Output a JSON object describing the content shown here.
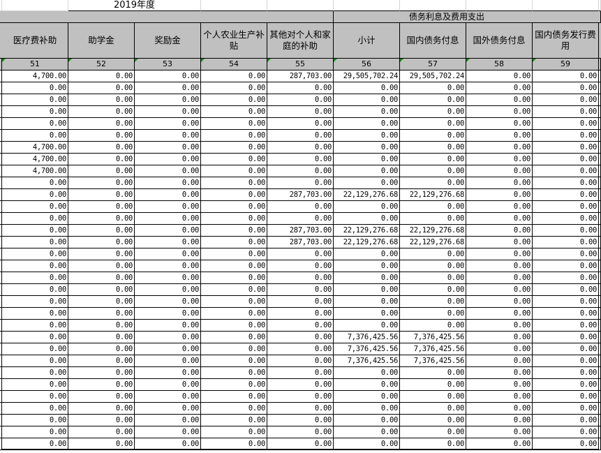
{
  "sheet": {
    "year_title": "2019年度",
    "group_header": "债务利息及费用支出",
    "columns": [
      {
        "label": "医疗费补助",
        "number": "51"
      },
      {
        "label": "助学金",
        "number": "52"
      },
      {
        "label": "奖励金",
        "number": "53"
      },
      {
        "label": "个人农业生产补贴",
        "number": "54"
      },
      {
        "label": "其他对个人和家庭的补助",
        "number": "55"
      },
      {
        "label": "小计",
        "number": "56"
      },
      {
        "label": "国内债务付息",
        "number": "57"
      },
      {
        "label": "国外债务付息",
        "number": "58"
      },
      {
        "label": "国内债务发行费用",
        "number": "59"
      }
    ],
    "rows": [
      [
        "4,700.00",
        "0.00",
        "0.00",
        "0.00",
        "287,703.00",
        "29,505,702.24",
        "29,505,702.24",
        "0.00",
        "0.00"
      ],
      [
        "0.00",
        "0.00",
        "0.00",
        "0.00",
        "0.00",
        "0.00",
        "0.00",
        "0.00",
        "0.00"
      ],
      [
        "0.00",
        "0.00",
        "0.00",
        "0.00",
        "0.00",
        "0.00",
        "0.00",
        "0.00",
        "0.00"
      ],
      [
        "0.00",
        "0.00",
        "0.00",
        "0.00",
        "0.00",
        "0.00",
        "0.00",
        "0.00",
        "0.00"
      ],
      [
        "0.00",
        "0.00",
        "0.00",
        "0.00",
        "0.00",
        "0.00",
        "0.00",
        "0.00",
        "0.00"
      ],
      [
        "0.00",
        "0.00",
        "0.00",
        "0.00",
        "0.00",
        "0.00",
        "0.00",
        "0.00",
        "0.00"
      ],
      [
        "4,700.00",
        "0.00",
        "0.00",
        "0.00",
        "0.00",
        "0.00",
        "0.00",
        "0.00",
        "0.00"
      ],
      [
        "4,700.00",
        "0.00",
        "0.00",
        "0.00",
        "0.00",
        "0.00",
        "0.00",
        "0.00",
        "0.00"
      ],
      [
        "4,700.00",
        "0.00",
        "0.00",
        "0.00",
        "0.00",
        "0.00",
        "0.00",
        "0.00",
        "0.00"
      ],
      [
        "0.00",
        "0.00",
        "0.00",
        "0.00",
        "0.00",
        "0.00",
        "0.00",
        "0.00",
        "0.00"
      ],
      [
        "0.00",
        "0.00",
        "0.00",
        "0.00",
        "287,703.00",
        "22,129,276.68",
        "22,129,276.68",
        "0.00",
        "0.00"
      ],
      [
        "0.00",
        "0.00",
        "0.00",
        "0.00",
        "0.00",
        "0.00",
        "0.00",
        "0.00",
        "0.00"
      ],
      [
        "0.00",
        "0.00",
        "0.00",
        "0.00",
        "0.00",
        "0.00",
        "0.00",
        "0.00",
        "0.00"
      ],
      [
        "0.00",
        "0.00",
        "0.00",
        "0.00",
        "287,703.00",
        "22,129,276.68",
        "22,129,276.68",
        "0.00",
        "0.00"
      ],
      [
        "0.00",
        "0.00",
        "0.00",
        "0.00",
        "287,703.00",
        "22,129,276.68",
        "22,129,276.68",
        "0.00",
        "0.00"
      ],
      [
        "0.00",
        "0.00",
        "0.00",
        "0.00",
        "0.00",
        "0.00",
        "0.00",
        "0.00",
        "0.00"
      ],
      [
        "0.00",
        "0.00",
        "0.00",
        "0.00",
        "0.00",
        "0.00",
        "0.00",
        "0.00",
        "0.00"
      ],
      [
        "0.00",
        "0.00",
        "0.00",
        "0.00",
        "0.00",
        "0.00",
        "0.00",
        "0.00",
        "0.00"
      ],
      [
        "0.00",
        "0.00",
        "0.00",
        "0.00",
        "0.00",
        "0.00",
        "0.00",
        "0.00",
        "0.00"
      ],
      [
        "0.00",
        "0.00",
        "0.00",
        "0.00",
        "0.00",
        "0.00",
        "0.00",
        "0.00",
        "0.00"
      ],
      [
        "0.00",
        "0.00",
        "0.00",
        "0.00",
        "0.00",
        "0.00",
        "0.00",
        "0.00",
        "0.00"
      ],
      [
        "0.00",
        "0.00",
        "0.00",
        "0.00",
        "0.00",
        "0.00",
        "0.00",
        "0.00",
        "0.00"
      ],
      [
        "0.00",
        "0.00",
        "0.00",
        "0.00",
        "0.00",
        "7,376,425.56",
        "7,376,425.56",
        "0.00",
        "0.00"
      ],
      [
        "0.00",
        "0.00",
        "0.00",
        "0.00",
        "0.00",
        "7,376,425.56",
        "7,376,425.56",
        "0.00",
        "0.00"
      ],
      [
        "0.00",
        "0.00",
        "0.00",
        "0.00",
        "0.00",
        "7,376,425.56",
        "7,376,425.56",
        "0.00",
        "0.00"
      ],
      [
        "0.00",
        "0.00",
        "0.00",
        "0.00",
        "0.00",
        "0.00",
        "0.00",
        "0.00",
        "0.00"
      ],
      [
        "0.00",
        "0.00",
        "0.00",
        "0.00",
        "0.00",
        "0.00",
        "0.00",
        "0.00",
        "0.00"
      ],
      [
        "0.00",
        "0.00",
        "0.00",
        "0.00",
        "0.00",
        "0.00",
        "0.00",
        "0.00",
        "0.00"
      ],
      [
        "0.00",
        "0.00",
        "0.00",
        "0.00",
        "0.00",
        "0.00",
        "0.00",
        "0.00",
        "0.00"
      ],
      [
        "0.00",
        "0.00",
        "0.00",
        "0.00",
        "0.00",
        "0.00",
        "0.00",
        "0.00",
        "0.00"
      ],
      [
        "0.00",
        "0.00",
        "0.00",
        "0.00",
        "0.00",
        "0.00",
        "0.00",
        "0.00",
        "0.00"
      ],
      [
        "0.00",
        "0.00",
        "0.00",
        "0.00",
        "0.00",
        "0.00",
        "0.00",
        "0.00",
        "0.00"
      ]
    ],
    "colors": {
      "header_bg": "#c0c0c0",
      "comment_marker": "#1a8a1a"
    }
  }
}
